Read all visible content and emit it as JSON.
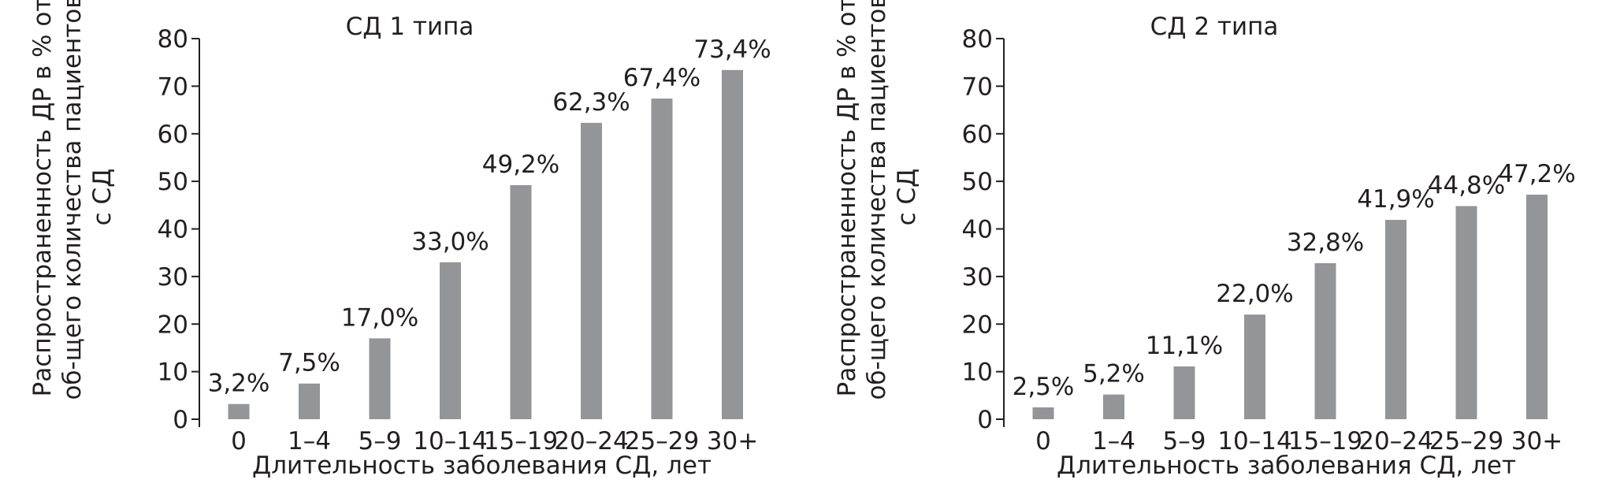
{
  "chart_data": [
    {
      "type": "bar",
      "title": "СД 1 типа",
      "xlabel": "Длительность заболевания СД, лет",
      "ylabel": "Распространенность ДР в % от об-щего количества пациентов с СД",
      "categories": [
        "0",
        "1–4",
        "5–9",
        "10–14",
        "15–19",
        "20–24",
        "25–29",
        "30+"
      ],
      "values": [
        3.2,
        7.5,
        17.0,
        33.0,
        49.2,
        62.3,
        67.4,
        73.4
      ],
      "data_labels": [
        "3,2%",
        "7,5%",
        "17,0%",
        "33,0%",
        "49,2%",
        "62,3%",
        "67,4%",
        "73,4%"
      ],
      "yticks": [
        "0",
        "10",
        "20",
        "30",
        "40",
        "50",
        "60",
        "70",
        "80"
      ],
      "ylim": [
        0,
        80
      ],
      "grid": false,
      "legend": "none",
      "bar_color": "#939598"
    },
    {
      "type": "bar",
      "title": "СД 2 типа",
      "xlabel": "Длительность заболевания СД, лет",
      "ylabel": "Распространенность ДР в % от об-щего количества пациентов с СД",
      "categories": [
        "0",
        "1–4",
        "5–9",
        "10–14",
        "15–19",
        "20–24",
        "25–29",
        "30+"
      ],
      "values": [
        2.5,
        5.2,
        11.1,
        22.0,
        32.8,
        41.9,
        44.8,
        47.2
      ],
      "data_labels": [
        "2,5%",
        "5,2%",
        "11,1%",
        "22,0%",
        "32,8%",
        "41,9%",
        "44,8%",
        "47,2%"
      ],
      "yticks": [
        "0",
        "10",
        "20",
        "30",
        "40",
        "50",
        "60",
        "70",
        "80"
      ],
      "ylim": [
        0,
        80
      ],
      "grid": false,
      "legend": "none",
      "bar_color": "#939598"
    }
  ]
}
